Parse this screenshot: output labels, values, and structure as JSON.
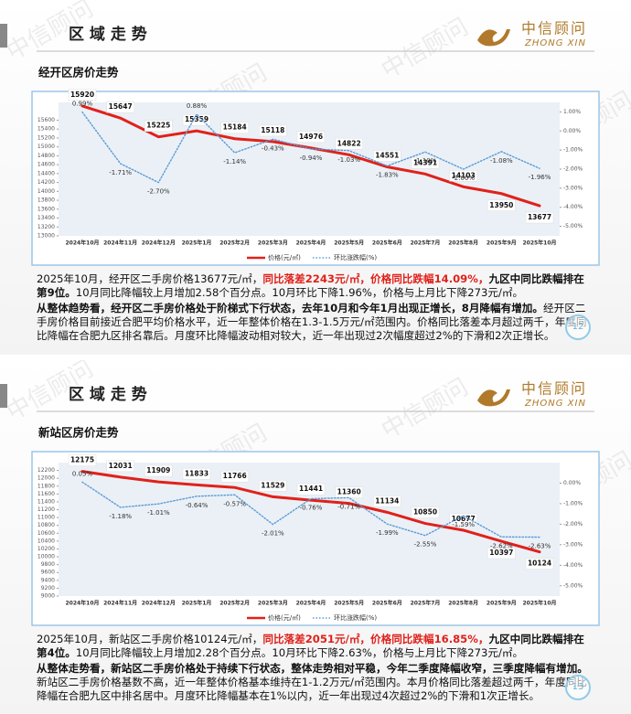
{
  "slides": [
    {
      "header": "区 域 走 势",
      "logo_cn": "中信顾问",
      "logo_en": "ZHONG XIN",
      "watermark": "中信顾问",
      "page_number": "12",
      "paragraphs": [
        [
          {
            "text": "2025年10月，经开区二手房价格13677元/㎡，",
            "style": "normal"
          },
          {
            "text": "同比落差2243元/㎡，价格同比跌幅14.09%，",
            "style": "red"
          },
          {
            "text": "九区中同比跌幅排在第9位。",
            "style": "bold"
          },
          {
            "text": "10月同比降幅较上月增加2.58个百分点。10月环比下降1.96%，价格与上月比下降273元/㎡。",
            "style": "normal"
          }
        ],
        [
          {
            "text": "从整体趋势看，经开区二手房价格处于阶梯式下行状态，去年10月和今年1月出现正增长，8月降幅有增加。",
            "style": "bold"
          },
          {
            "text": "经开区二手房价格目前接近合肥平均价格水平，近一年整体价格在1.3-1.5万元/㎡范围内。价格同比落差本月超过两千，年度同比降幅在合肥九区排名靠后。月度环比降幅波动相对较大，近一年出现过2次幅度超过2%的下滑和2次正增长。",
            "style": "normal"
          }
        ]
      ]
    },
    {
      "header": "区 域 走 势",
      "logo_cn": "中信顾问",
      "logo_en": "ZHONG XIN",
      "watermark": "中信顾问",
      "page_number": "13",
      "paragraphs": [
        [
          {
            "text": "2025年10月，新站区二手房价格10124元/㎡，",
            "style": "normal"
          },
          {
            "text": "同比落差2051元/㎡，价格同比跌幅16.85%，",
            "style": "red"
          },
          {
            "text": "九区中同比跌幅排在第4位。",
            "style": "bold"
          },
          {
            "text": "10月同比降幅较上月增加2.28个百分点。10月环比下降2.63%，价格与上月比下降273元/㎡。",
            "style": "normal"
          }
        ],
        [
          {
            "text": "从整体走势看，新站区二手房价格处于持续下行状态，整体走势相对平稳，今年二季度降幅收窄，三季度降幅有增加。",
            "style": "bold"
          },
          {
            "text": "新站区二手房价格基数不高，近一年整体价格基本维持在1-1.2万元/㎡范围内。本月价格同比落差超过两千，年度同比降幅在合肥九区中排名居中。月度环比降幅基本在1%以内，近一年出现过4次超过2%的下滑和1次正增长。",
            "style": "normal"
          }
        ]
      ]
    }
  ],
  "chart_data": [
    {
      "type": "line",
      "title": "经开区房价走势",
      "categories": [
        "2024年10月",
        "2024年11月",
        "2024年12月",
        "2025年1月",
        "2025年2月",
        "2025年3月",
        "2025年4月",
        "2025年5月",
        "2025年6月",
        "2025年7月",
        "2025年8月",
        "2025年9月",
        "2025年10月"
      ],
      "series": [
        {
          "name": "价格(元/㎡)",
          "color": "#e0211a",
          "style": "solid",
          "values": [
            15920,
            15647,
            15225,
            15359,
            15184,
            15118,
            14976,
            14822,
            14551,
            14391,
            14103,
            13950,
            13677
          ]
        },
        {
          "name": "环比涨跌幅(%)",
          "color": "#5b9bd5",
          "style": "dotted",
          "axis": "y2",
          "values": [
            0.99,
            -1.71,
            -2.7,
            0.88,
            -1.14,
            -0.43,
            -0.94,
            -1.03,
            -1.83,
            -1.1,
            -2.0,
            -1.08,
            -1.96
          ],
          "value_labels": [
            "0.99%",
            "-1.71%",
            "-2.70%",
            "0.88%",
            "-1.14%",
            "-0.43%",
            "-0.94%",
            "-1.03%",
            "-1.83%",
            "-1.10%",
            "-2.00%",
            "-1.08%",
            "-1.96%"
          ]
        }
      ],
      "ylim": [
        13000,
        16000
      ],
      "yticks": [
        13000,
        13200,
        13400,
        13600,
        13800,
        14000,
        14200,
        14400,
        14600,
        14800,
        15000,
        15200,
        15400,
        15600
      ],
      "y2lim": [
        -5.5,
        1.5
      ],
      "y2ticks": [
        {
          "value": 1,
          "label": "1.00%"
        },
        {
          "value": 0,
          "label": "0.00%"
        },
        {
          "value": -1,
          "label": "-1.00%"
        },
        {
          "value": -2,
          "label": "-2.00%"
        },
        {
          "value": -3,
          "label": "-3.00%"
        },
        {
          "value": -4,
          "label": "-4.00%"
        },
        {
          "value": -5,
          "label": "-5.00%"
        }
      ],
      "legend": "bottom"
    },
    {
      "type": "line",
      "title": "新站区房价走势",
      "categories": [
        "2024年10月",
        "2024年11月",
        "2024年12月",
        "2025年1月",
        "2025年2月",
        "2025年3月",
        "2025年4月",
        "2025年5月",
        "2025年6月",
        "2025年7月",
        "2025年8月",
        "2025年9月",
        "2025年10月"
      ],
      "series": [
        {
          "name": "价格(元/㎡)",
          "color": "#e0211a",
          "style": "solid",
          "values": [
            12175,
            12031,
            11909,
            11833,
            11766,
            11529,
            11441,
            11360,
            11134,
            10850,
            10677,
            10397,
            10124
          ]
        },
        {
          "name": "环比涨跌幅(%)",
          "color": "#5b9bd5",
          "style": "dotted",
          "axis": "y2",
          "values": [
            0.05,
            -1.18,
            -1.01,
            -0.64,
            -0.57,
            -2.01,
            -0.76,
            -0.71,
            -1.99,
            -2.55,
            -1.59,
            -2.62,
            -2.63
          ],
          "value_labels": [
            "0.05%",
            "-1.18%",
            "-1.01%",
            "-0.64%",
            "-0.57%",
            "-2.01%",
            "-0.76%",
            "-0.71%",
            "-1.99%",
            "-2.55%",
            "-1.59%",
            "-2.62%",
            "-2.63%"
          ]
        }
      ],
      "ylim": [
        9000,
        12400
      ],
      "yticks": [
        9000,
        9200,
        9400,
        9600,
        9800,
        10000,
        10200,
        10400,
        10600,
        10800,
        11000,
        11200,
        11400,
        11600,
        11800,
        12000,
        12200
      ],
      "y2lim": [
        -5.5,
        1
      ],
      "y2ticks": [
        {
          "value": 0,
          "label": "0.00%"
        },
        {
          "value": -1,
          "label": "-1.00%"
        },
        {
          "value": -2,
          "label": "-2.00%"
        },
        {
          "value": -3,
          "label": "-3.00%"
        },
        {
          "value": -4,
          "label": "-4.00%"
        },
        {
          "value": -5,
          "label": "-5.00%"
        }
      ],
      "legend": "bottom"
    }
  ]
}
